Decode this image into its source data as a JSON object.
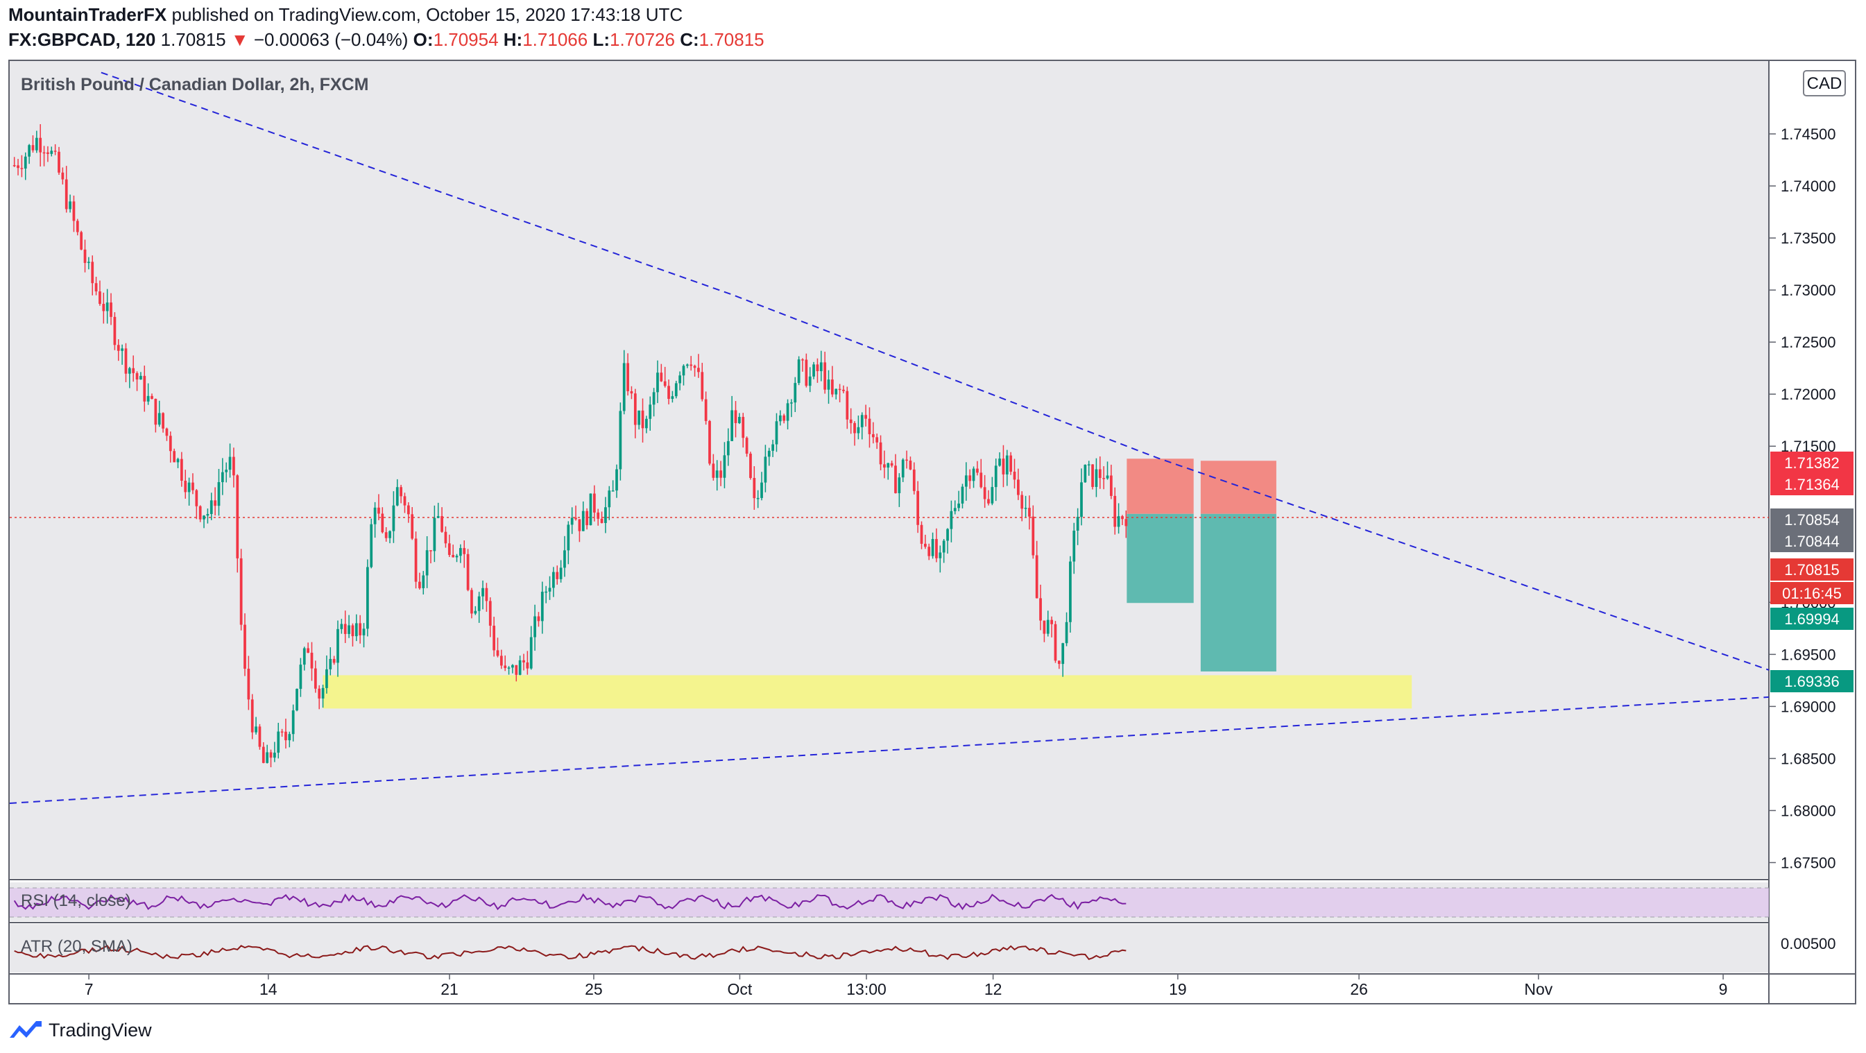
{
  "header": {
    "publisher": "MountainTraderFX",
    "published_text": "published on TradingView.com, October 15, 2020 17:43:18 UTC",
    "symbol": "FX:GBPCAD, 120",
    "last": "1.70815",
    "change_arrow": "▼",
    "change": "−0.00063 (−0.04%)",
    "o_label": "O:",
    "o_val": "1.70954",
    "h_label": "H:",
    "h_val": "1.71066",
    "l_label": "L:",
    "l_val": "1.70726",
    "c_label": "C:",
    "c_val": "1.70815"
  },
  "chart_title": "British Pound / Canadian Dollar, 2h, FXCM",
  "currency_badge": "CAD",
  "footer": {
    "brand": "TradingView",
    "logo_icon": "tradingview-logo-icon"
  },
  "colors": {
    "up": "#089981",
    "down": "#f23645",
    "trendline": "#2424d8",
    "support_zone": "#f4f48e",
    "stop_zone": "#f28a84",
    "target_zone": "#5fbab0",
    "current_price_line": "#e53935"
  },
  "chart_data": {
    "type": "candlestick",
    "symbol": "GBPCAD",
    "interval": "2h",
    "ylim": [
      1.6735,
      1.752
    ],
    "x_tick_labels": [
      "7",
      "14",
      "21",
      "25",
      "Oct",
      "13:00",
      "12",
      "19",
      "26",
      "Nov",
      "9"
    ],
    "y_tick_labels": [
      "1.74500",
      "1.74000",
      "1.73500",
      "1.73000",
      "1.72500",
      "1.72000",
      "1.71500",
      "1.70000",
      "1.69500",
      "1.69000",
      "1.68500",
      "1.68000",
      "1.67500"
    ],
    "y_ticks": [
      1.745,
      1.74,
      1.735,
      1.73,
      1.725,
      1.72,
      1.715,
      1.7,
      1.695,
      1.69,
      1.685,
      1.68,
      1.675
    ],
    "price_path": [
      1.742,
      1.743,
      1.7445,
      1.744,
      1.7415,
      1.738,
      1.7345,
      1.731,
      1.729,
      1.7265,
      1.7235,
      1.722,
      1.72,
      1.718,
      1.716,
      1.7135,
      1.711,
      1.709,
      1.7085,
      1.7125,
      1.7135,
      1.694,
      1.6875,
      1.684,
      1.6865,
      1.687,
      1.6925,
      1.696,
      1.691,
      1.6935,
      1.6985,
      1.6965,
      1.6975,
      1.7105,
      1.7045,
      1.711,
      1.7095,
      1.702,
      1.705,
      1.7085,
      1.703,
      1.7065,
      1.6995,
      1.7015,
      1.696,
      1.693,
      1.6935,
      1.6945,
      1.6985,
      1.702,
      1.7035,
      1.709,
      1.7075,
      1.7095,
      1.7085,
      1.7105,
      1.7225,
      1.7175,
      1.717,
      1.7215,
      1.7195,
      1.7225,
      1.724,
      1.7205,
      1.7115,
      1.7125,
      1.719,
      1.7145,
      1.7085,
      1.7155,
      1.7165,
      1.7195,
      1.7225,
      1.7215,
      1.7225,
      1.7195,
      1.7205,
      1.7155,
      1.7185,
      1.7155,
      1.7125,
      1.7115,
      1.7145,
      1.7065,
      1.7055,
      1.7035,
      1.7085,
      1.7115,
      1.7135,
      1.7095,
      1.7125,
      1.7135,
      1.7115,
      1.7085,
      1.6985,
      1.6975,
      1.6935,
      1.704,
      1.7125,
      1.712,
      1.7125,
      1.708,
      1.7085
    ],
    "trendlines": [
      {
        "name": "descending resistance",
        "points": [
          [
            0.052,
            1.7509
          ],
          [
            0.41,
            1.7296
          ],
          [
            0.652,
            1.7139
          ],
          [
            1.0,
            1.6935
          ]
        ]
      },
      {
        "name": "ascending support",
        "points": [
          [
            0.0,
            1.6807
          ],
          [
            1.0,
            1.6909
          ]
        ]
      }
    ],
    "support_zone": {
      "from": 0.178,
      "to": 0.797,
      "price_low": 1.6898,
      "price_high": 1.693
    },
    "positions": [
      {
        "from": 0.635,
        "to": 0.673,
        "entry": 1.7085,
        "stop": 1.7138,
        "target": 1.69994
      },
      {
        "from": 0.677,
        "to": 0.72,
        "entry": 1.7085,
        "stop": 1.7136,
        "target": 1.69336
      }
    ],
    "current_price": 1.70815,
    "price_labels": [
      {
        "value": 1.71382,
        "text": "1.71382",
        "color": "#f23645"
      },
      {
        "value": 1.71364,
        "text": "1.71364",
        "color": "#f23645"
      },
      {
        "value": 1.70854,
        "text": "1.70854",
        "color": "#6b6f79"
      },
      {
        "value": 1.70844,
        "text": "1.70844",
        "color": "#6b6f79"
      },
      {
        "value": 1.70815,
        "text": "1.70815",
        "color": "#e53935"
      },
      {
        "value": 1.70815,
        "text": "01:16:45",
        "color": "#e53935"
      },
      {
        "value": 1.69994,
        "text": "1.69994",
        "color": "#089981"
      },
      {
        "value": 1.69336,
        "text": "1.69336",
        "color": "#089981"
      }
    ],
    "rsi": {
      "label": "RSI (14, close)",
      "color": "#7b1fa2",
      "band_color": "#e0c8ee"
    },
    "atr": {
      "label": "ATR (20, SMA)",
      "color": "#8b1a1a",
      "tick": "0.00500"
    }
  }
}
